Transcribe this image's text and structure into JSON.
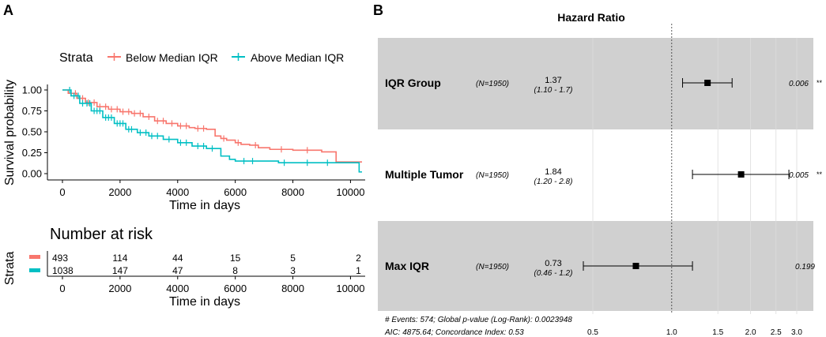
{
  "colors": {
    "below": "#F8766D",
    "above": "#00BFC4",
    "band": "#D0D0D0",
    "grid": "#DCDCDC",
    "axis": "#000000"
  },
  "chart_data": [
    {
      "type": "line",
      "panel_label": "A",
      "title": "",
      "xlabel": "Time in days",
      "ylabel": "Survival probability",
      "xlim": [
        0,
        10500
      ],
      "ylim": [
        0,
        1
      ],
      "xticks": [
        0,
        2000,
        4000,
        6000,
        8000,
        10000
      ],
      "yticks": [
        "0.00",
        "0.25",
        "0.50",
        "0.75",
        "1.00"
      ],
      "legend_title": "Strata",
      "legend_position": "top",
      "series": [
        {
          "name": "Below Median IQR",
          "color_key": "below",
          "x": [
            0,
            200,
            500,
            800,
            1200,
            1600,
            2000,
            2400,
            2800,
            3200,
            3600,
            4000,
            4400,
            4600,
            5000,
            5300,
            5500,
            5700,
            6000,
            6200,
            6500,
            6800,
            7200,
            8000,
            9000,
            9500,
            10400
          ],
          "y": [
            1.0,
            0.96,
            0.9,
            0.85,
            0.8,
            0.77,
            0.74,
            0.72,
            0.68,
            0.63,
            0.6,
            0.57,
            0.55,
            0.54,
            0.53,
            0.45,
            0.42,
            0.4,
            0.37,
            0.35,
            0.34,
            0.31,
            0.29,
            0.28,
            0.26,
            0.14,
            0.14
          ]
        },
        {
          "name": "Above Median IQR",
          "color_key": "above",
          "x": [
            0,
            300,
            600,
            1000,
            1400,
            1800,
            2200,
            2600,
            3000,
            3500,
            4000,
            4500,
            5000,
            5500,
            5800,
            6000,
            6800,
            7500,
            8000,
            9000,
            10000,
            10300,
            10400
          ],
          "y": [
            1.0,
            0.93,
            0.84,
            0.75,
            0.67,
            0.6,
            0.53,
            0.49,
            0.45,
            0.41,
            0.37,
            0.33,
            0.3,
            0.21,
            0.17,
            0.15,
            0.15,
            0.13,
            0.13,
            0.13,
            0.13,
            0.02,
            0.02
          ]
        }
      ],
      "censor_marks": {
        "Below Median IQR": [
          300,
          450,
          700,
          900,
          1100,
          1300,
          1500,
          1700,
          1900,
          2100,
          2300,
          2500,
          2700,
          3000,
          3300,
          3500,
          3800,
          4100,
          4300,
          4700,
          4900,
          5600,
          6100,
          6700,
          7600,
          8500
        ],
        "Above Median IQR": [
          250,
          400,
          550,
          700,
          850,
          950,
          1100,
          1200,
          1300,
          1500,
          1600,
          1700,
          1900,
          2000,
          2100,
          2300,
          2400,
          2700,
          2900,
          3100,
          3300,
          3700,
          4100,
          4300,
          4700,
          4900,
          5200,
          6300,
          6600,
          7700,
          8500,
          9200
        ]
      }
    },
    {
      "type": "table",
      "title": "Number at risk",
      "ylabel": "Strata",
      "xlabel": "Time in days",
      "x": [
        0,
        2000,
        4000,
        6000,
        8000,
        10000
      ],
      "xticks": [
        0,
        2000,
        4000,
        6000,
        8000,
        10000
      ],
      "xlim": [
        0,
        10500
      ],
      "rows": [
        {
          "name": "Below Median IQR",
          "color_key": "below",
          "values": [
            493,
            114,
            44,
            15,
            5,
            2
          ]
        },
        {
          "name": "Above Median IQR",
          "color_key": "above",
          "values": [
            1038,
            147,
            47,
            8,
            3,
            1
          ]
        }
      ]
    },
    {
      "type": "scatter",
      "panel_label": "B",
      "title": "Hazard Ratio",
      "xscale": "log",
      "xlim": [
        0.3,
        3.6
      ],
      "xticks": [
        "0.5",
        "1.0",
        "1.5",
        "2.0",
        "2.5",
        "3.0"
      ],
      "reference_line": 1.0,
      "rows": [
        {
          "label": "IQR Group",
          "n": "(N=1950)",
          "hr": 1.37,
          "hr_text": "1.37",
          "ci": [
            1.1,
            1.7
          ],
          "ci_text": "(1.10 - 1.7)",
          "p": "0.006",
          "stars": "**",
          "shaded": true
        },
        {
          "label": "Multiple Tumor",
          "n": "(N=1950)",
          "hr": 1.84,
          "hr_text": "1.84",
          "ci": [
            1.2,
            2.8
          ],
          "ci_text": "(1.20 - 2.8)",
          "p": "0.005",
          "stars": "**",
          "shaded": false
        },
        {
          "label": "Max IQR",
          "n": "(N=1950)",
          "hr": 0.73,
          "hr_text": "0.73",
          "ci": [
            0.46,
            1.2
          ],
          "ci_text": "(0.46 - 1.2)",
          "p": "0.199",
          "stars": "",
          "shaded": true
        }
      ],
      "footer": [
        "# Events: 574; Global p-value (Log-Rank): 0.0023948",
        "AIC: 4875.64; Concordance Index: 0.53"
      ]
    }
  ]
}
